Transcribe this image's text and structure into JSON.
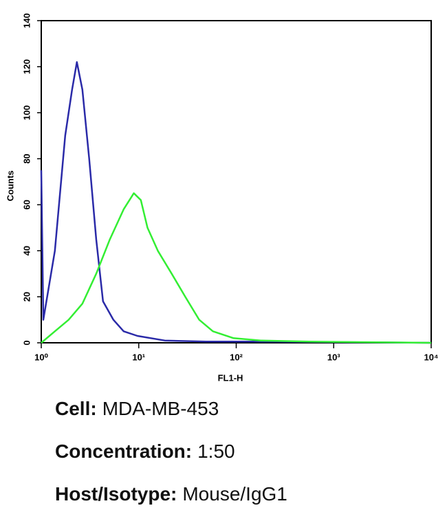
{
  "chart_data": {
    "type": "line",
    "xlabel": "FL1-H",
    "ylabel": "Counts",
    "xscale": "log",
    "xlim": [
      1,
      10000
    ],
    "xticks": [
      {
        "value": 1,
        "label": "10⁰"
      },
      {
        "value": 10,
        "label": "10¹"
      },
      {
        "value": 100,
        "label": "10²"
      },
      {
        "value": 1000,
        "label": "10³"
      },
      {
        "value": 10000,
        "label": "10⁴"
      }
    ],
    "ylim": [
      0,
      140
    ],
    "yticks": [
      0,
      20,
      40,
      60,
      80,
      100,
      120,
      140
    ],
    "series": [
      {
        "color": "#2a2aa8",
        "x": [
          1,
          1.05,
          1.38,
          1.76,
          2.07,
          2.32,
          2.64,
          3.1,
          3.66,
          4.3,
          5.5,
          7,
          9.7,
          18.5,
          49,
          247,
          10000
        ],
        "values": [
          75,
          10,
          40,
          90,
          110,
          122,
          110,
          80,
          45,
          18,
          10,
          5,
          3,
          1,
          0.5,
          0.5,
          0
        ]
      },
      {
        "color": "#33ee33",
        "x": [
          1,
          1.38,
          1.91,
          2.64,
          3.66,
          5.06,
          7,
          8.9,
          10.5,
          12.3,
          15.7,
          21.8,
          30,
          41.7,
          57.7,
          94,
          179,
          557,
          10000
        ],
        "values": [
          0,
          5,
          10,
          17,
          30,
          45,
          58,
          65,
          62,
          50,
          40,
          30,
          20,
          10,
          5,
          2,
          1,
          0.5,
          0
        ]
      }
    ]
  },
  "caption": [
    {
      "label": "Cell:",
      "value": "MDA-MB-453"
    },
    {
      "label": "Concentration:",
      "value": "1:50"
    },
    {
      "label": "Host/Isotype:",
      "value": "Mouse/IgG1"
    }
  ]
}
